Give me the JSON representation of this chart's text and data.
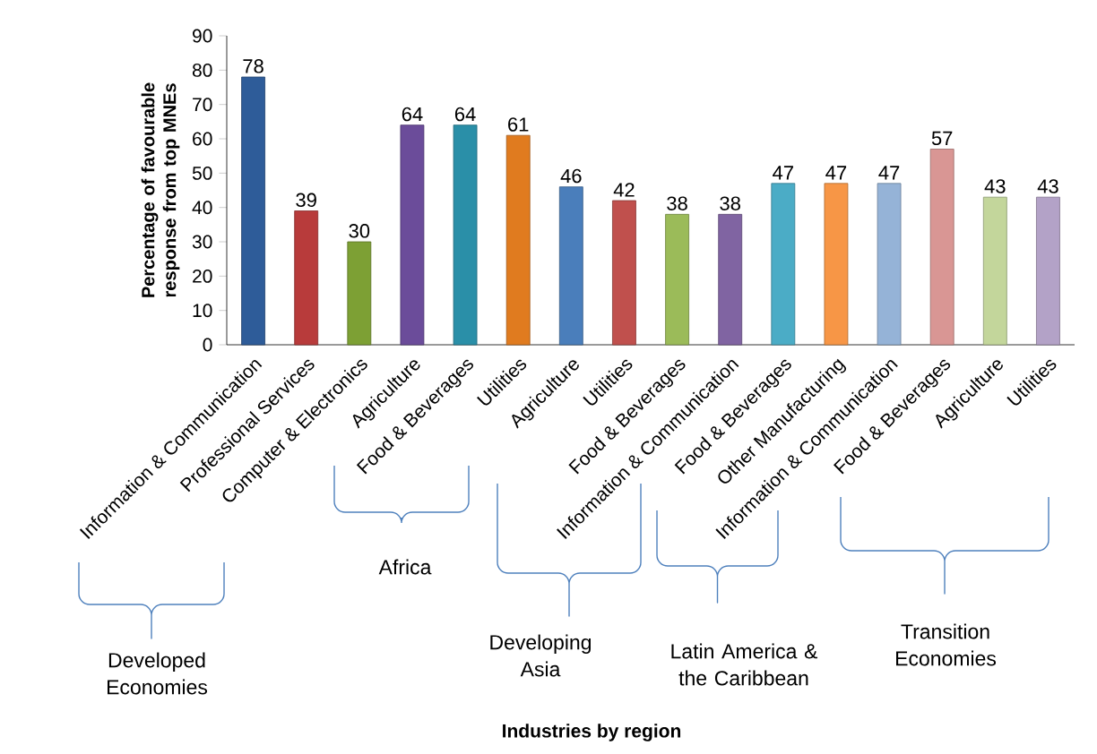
{
  "chart_data": {
    "type": "bar",
    "categories": [
      "Information & Communication",
      "Professional Services",
      "Computer & Electronics",
      "Agriculture",
      "Food & Beverages",
      "Utilities",
      "Agriculture",
      "Utilities",
      "Food & Beverages",
      "Information & Communication",
      "Food & Beverages",
      "Other Manufacturing",
      "Information & Communication",
      "Food & Beverages",
      "Agriculture",
      "Utilities"
    ],
    "values": [
      78,
      39,
      30,
      64,
      64,
      61,
      46,
      42,
      38,
      38,
      47,
      47,
      47,
      57,
      43,
      43
    ],
    "colors": [
      "#2e5c99",
      "#b83b3b",
      "#7da034",
      "#6b4c9a",
      "#2a8fa8",
      "#e07b1f",
      "#4a7ebb",
      "#c0504d",
      "#9bbb59",
      "#8064a2",
      "#4bacc6",
      "#f79646",
      "#95b3d7",
      "#d99694",
      "#c3d69b",
      "#b3a2c7"
    ],
    "data_labels": true,
    "ylim": [
      0,
      90
    ],
    "yticks": [
      0,
      10,
      20,
      30,
      40,
      50,
      60,
      70,
      80,
      90
    ],
    "ylabel": "Percentage of favourable response from top MNEs",
    "annotations": [
      "Developed Economies",
      "Africa",
      "Developing Asia",
      "Latin America & the Caribbean",
      "Transition Economies",
      "**Industries by region**"
    ]
  }
}
